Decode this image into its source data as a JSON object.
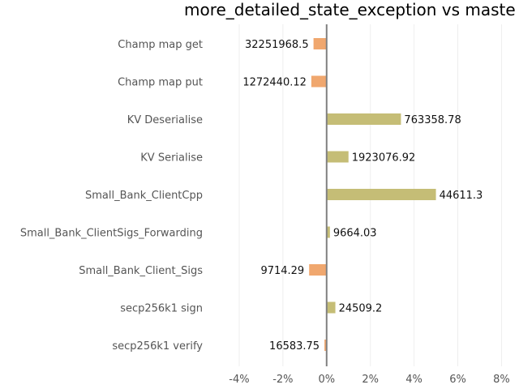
{
  "chart_data": {
    "type": "bar",
    "orientation": "horizontal",
    "title": "more_detailed_state_exception vs maste",
    "xlabel": "",
    "ylabel": "",
    "categories": [
      "Champ map get",
      "Champ map put",
      "KV Deserialise",
      "KV Serialise",
      "Small_Bank_ClientCpp",
      "Small_Bank_ClientSigs_Forwarding",
      "Small_Bank_Client_Sigs",
      "secp256k1 sign",
      "secp256k1 verify"
    ],
    "values": [
      -0.6,
      -0.7,
      3.4,
      1.0,
      5.0,
      0.15,
      -0.8,
      0.4,
      -0.1
    ],
    "data_labels": [
      "32251968.5",
      "1272440.12",
      "763358.78",
      "1923076.92",
      "44611.3",
      "9664.03",
      "9714.29",
      "24509.2",
      "16583.75"
    ],
    "xlim": [
      -5,
      8.8
    ],
    "xticks": [
      -4,
      -2,
      0,
      2,
      4,
      6,
      8
    ],
    "xtick_labels": [
      "-4%",
      "-2%",
      "0%",
      "2%",
      "4%",
      "6%",
      "8%"
    ],
    "grid": true,
    "colors": {
      "positive": "#c5bd76",
      "negative": "#f0a76e",
      "zero_line": "#808080",
      "grid": "#eeeeee"
    }
  }
}
